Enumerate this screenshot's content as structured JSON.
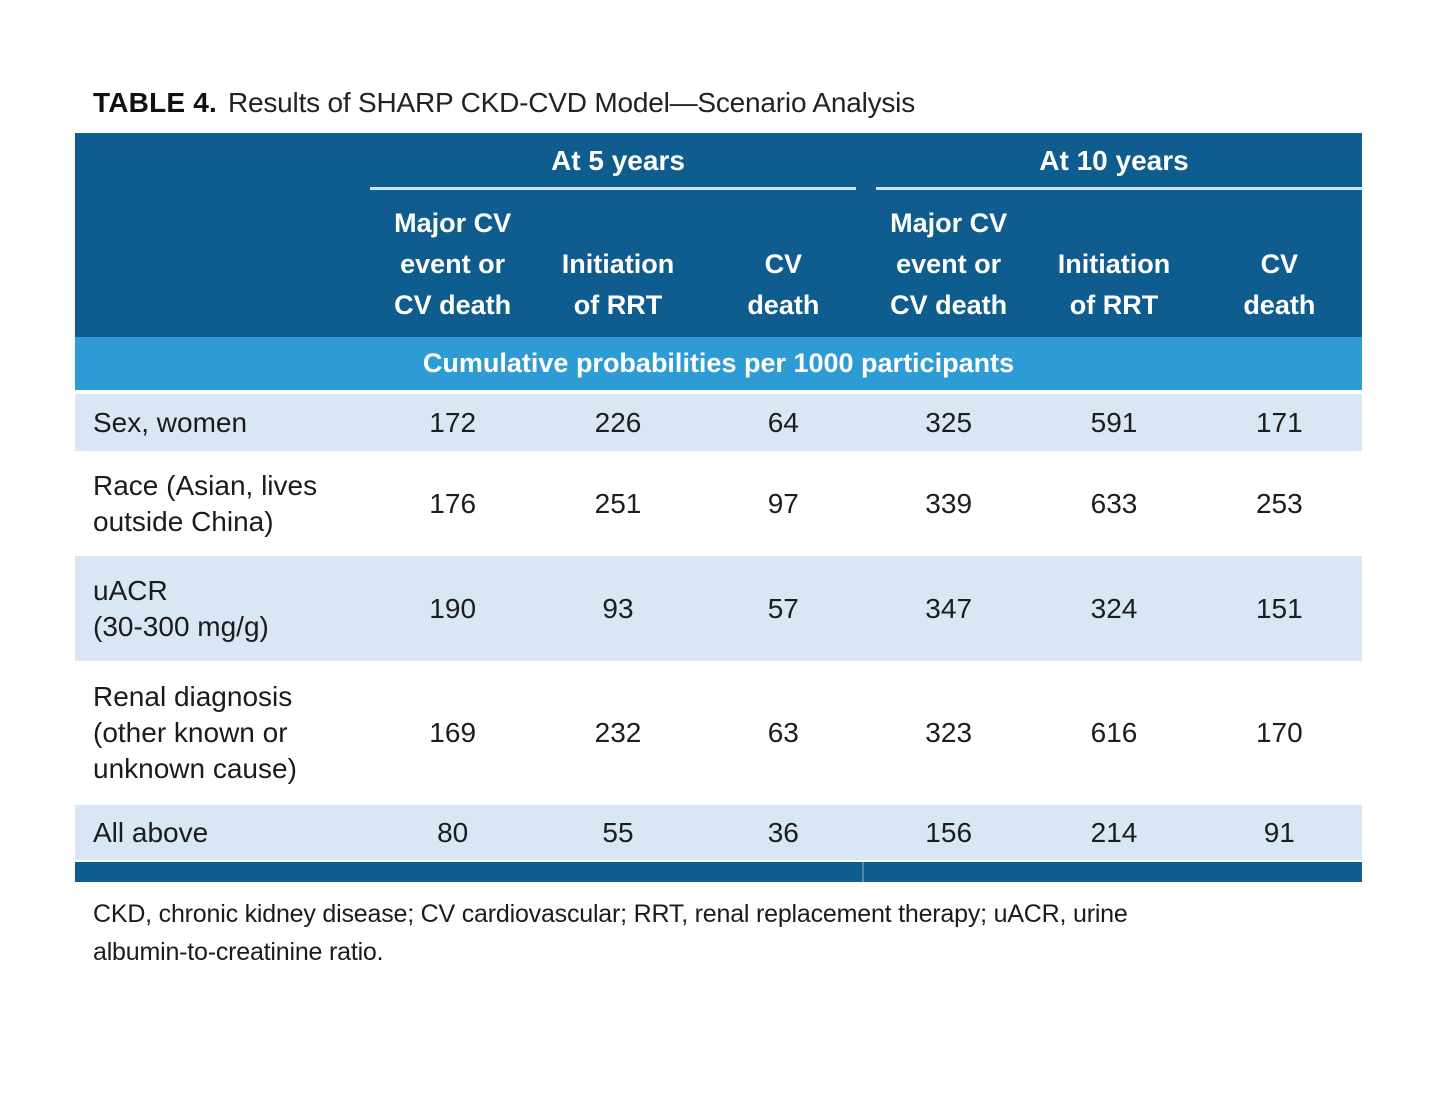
{
  "title": {
    "label": "TABLE 4.",
    "text": "Results of SHARP CKD-CVD Model—Scenario Analysis"
  },
  "table": {
    "groups": [
      {
        "label": "At 5 years"
      },
      {
        "label": "At 10 years"
      }
    ],
    "columns": [
      "Major CV\nevent or\nCV death",
      "Initiation\nof RRT",
      "CV\ndeath",
      "Major CV\nevent or\nCV death",
      "Initiation\nof RRT",
      "CV\ndeath"
    ],
    "band": "Cumulative probabilities per 1000 participants",
    "rows": [
      {
        "label": "Sex, women",
        "values": [
          172,
          226,
          64,
          325,
          591,
          171
        ]
      },
      {
        "label": "Race (Asian, lives\noutside China)",
        "values": [
          176,
          251,
          97,
          339,
          633,
          253
        ]
      },
      {
        "label": "uACR\n(30-300 mg/g)",
        "values": [
          190,
          93,
          57,
          347,
          324,
          151
        ]
      },
      {
        "label": "Renal diagnosis\n(other known or\nunknown cause)",
        "values": [
          169,
          232,
          63,
          323,
          616,
          170
        ]
      },
      {
        "label": "All above",
        "values": [
          80,
          55,
          36,
          156,
          214,
          91
        ]
      }
    ]
  },
  "footnote": "CKD, chronic kidney disease; CV cardiovascular; RRT, renal replacement therapy; uACR, urine\nalbumin-to-creatinine ratio.",
  "colors": {
    "header_blue": "#0f5c8e",
    "band_blue": "#2e9bd5",
    "row_light_blue": "#d9e6f3",
    "underline": "#cde0ec",
    "text": "#1b1b1b"
  }
}
